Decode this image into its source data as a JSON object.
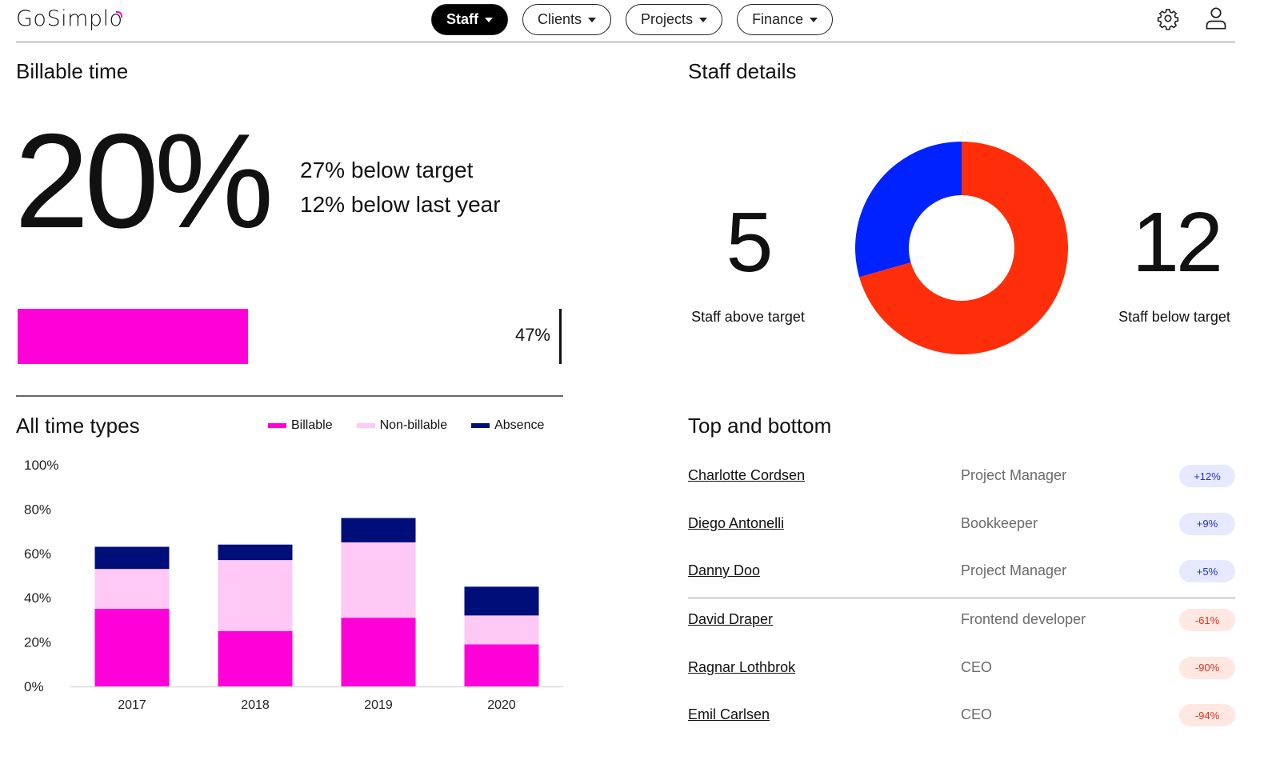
{
  "header": {
    "logo": "GoSimplo",
    "nav": [
      {
        "label": "Staff",
        "active": true
      },
      {
        "label": "Clients",
        "active": false
      },
      {
        "label": "Projects",
        "active": false
      },
      {
        "label": "Finance",
        "active": false
      }
    ],
    "icons": [
      "gear-icon",
      "user-icon"
    ]
  },
  "billable": {
    "title": "Billable time",
    "value": "20%",
    "below_target": "27% below target",
    "below_last_year": "12% below last year",
    "progress": {
      "value_percent": 20,
      "target_percent": 47,
      "target_label": "47%"
    },
    "colors": {
      "fill": "#ff00d9"
    }
  },
  "time_types": {
    "title": "All time types",
    "legend": [
      {
        "label": "Billable",
        "color": "#ff00d9"
      },
      {
        "label": "Non-billable",
        "color": "#ffc8f5"
      },
      {
        "label": "Absence",
        "color": "#000e7a"
      }
    ]
  },
  "chart_data": {
    "type": "bar",
    "stacked": true,
    "title": "All time types",
    "xlabel": "",
    "ylabel": "",
    "categories": [
      "2017",
      "2018",
      "2019",
      "2020"
    ],
    "series": [
      {
        "name": "Billable",
        "color": "#ff00d9",
        "values": [
          35,
          25,
          31,
          19
        ]
      },
      {
        "name": "Non-billable",
        "color": "#ffc8f5",
        "values": [
          18,
          32,
          34,
          13
        ]
      },
      {
        "name": "Absence",
        "color": "#000e7a",
        "values": [
          10,
          7,
          11,
          13
        ]
      }
    ],
    "ylim": [
      0,
      100
    ],
    "yticks": [
      "0%",
      "20%",
      "40%",
      "60%",
      "80%",
      "100%"
    ],
    "ytick_values": [
      0,
      20,
      40,
      60,
      80,
      100
    ],
    "grid": false,
    "legend_position": "top-right"
  },
  "staff": {
    "title": "Staff details",
    "above": {
      "value": "5",
      "label": "Staff above target",
      "count": 5,
      "color": "#0022ff"
    },
    "below": {
      "value": "12",
      "label": "Staff below target",
      "count": 12,
      "color": "#ff2e0a"
    }
  },
  "top_bottom": {
    "title": "Top and bottom",
    "top": [
      {
        "name": "Charlotte Cordsen",
        "role": "Project Manager",
        "delta": "+12%"
      },
      {
        "name": "Diego Antonelli",
        "role": "Bookkeeper",
        "delta": "+9%"
      },
      {
        "name": "Danny Doo",
        "role": "Project Manager",
        "delta": "+5%"
      }
    ],
    "bottom": [
      {
        "name": "David Draper",
        "role": "Frontend developer",
        "delta": "-61%"
      },
      {
        "name": "Ragnar Lothbrok",
        "role": "CEO",
        "delta": "-90%"
      },
      {
        "name": "Emil Carlsen",
        "role": "CEO",
        "delta": "-94%"
      }
    ]
  }
}
